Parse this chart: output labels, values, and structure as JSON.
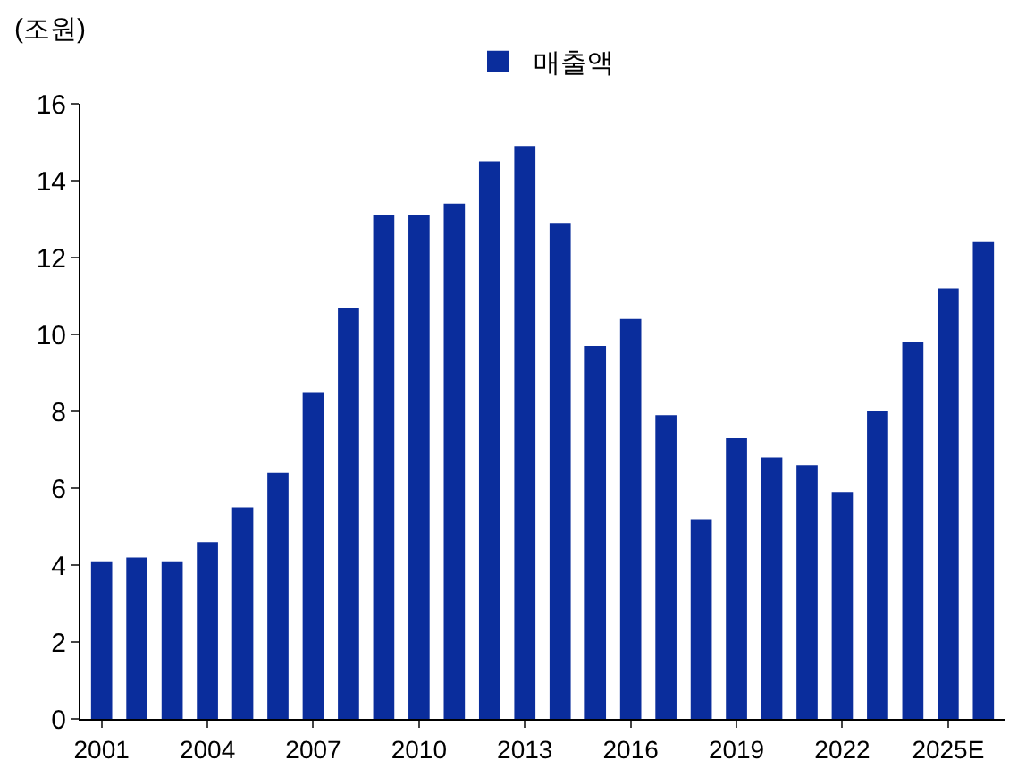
{
  "chart_data": {
    "type": "bar",
    "ylabel": "(조원)",
    "categories": [
      "2001",
      null,
      null,
      "2004",
      null,
      null,
      "2007",
      null,
      null,
      "2010",
      null,
      null,
      "2013",
      null,
      null,
      "2016",
      null,
      null,
      "2019",
      null,
      null,
      "2022",
      null,
      null,
      "2025E",
      null
    ],
    "series": [
      {
        "name": "매출액",
        "color": "#0a2d9c",
        "values": [
          4.1,
          4.2,
          4.1,
          4.6,
          5.5,
          6.4,
          8.5,
          10.7,
          13.1,
          13.1,
          13.4,
          14.5,
          14.9,
          12.9,
          9.7,
          10.4,
          7.9,
          5.2,
          7.3,
          6.8,
          6.6,
          5.9,
          8.0,
          9.8,
          11.2,
          12.4
        ]
      }
    ],
    "ylim": [
      0,
      16
    ],
    "yticks": [
      0,
      2,
      4,
      6,
      8,
      10,
      12,
      14,
      16
    ],
    "grid": false,
    "legend": "top"
  }
}
